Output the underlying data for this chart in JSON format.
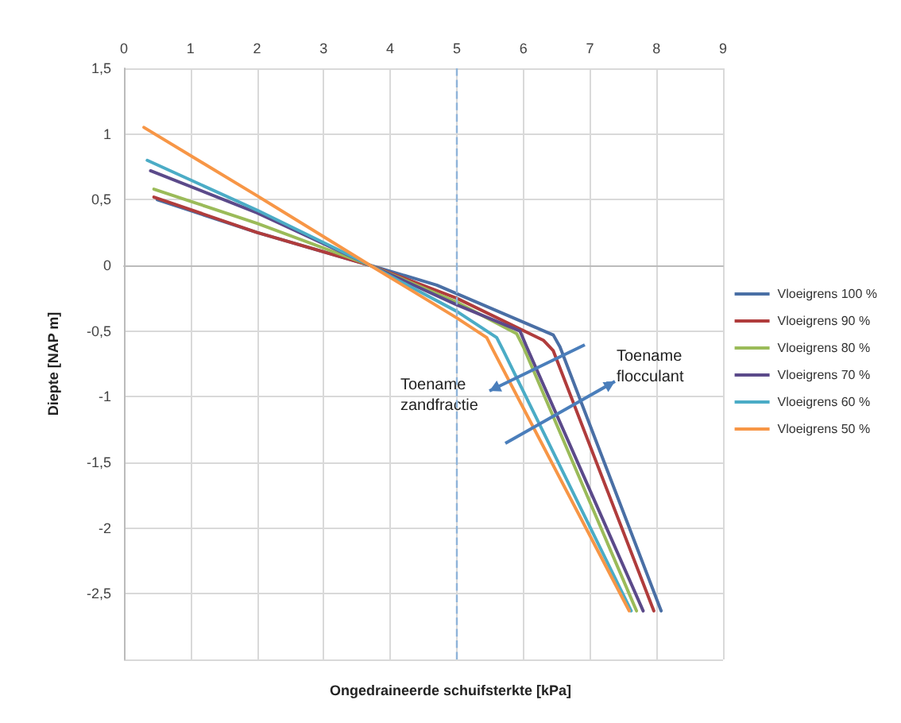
{
  "chart_data": {
    "type": "line",
    "xlabel": "Ongedraineerde schuifsterkte [kPa]",
    "ylabel": "Diepte [NAP m]",
    "xlim": [
      0,
      9
    ],
    "xticks": [
      0,
      1,
      2,
      3,
      4,
      5,
      6,
      7,
      8,
      9
    ],
    "ylim": [
      -3,
      1.5
    ],
    "yticks": [
      {
        "value": -3,
        "label": null
      },
      {
        "value": -2.5,
        "label": "-2,5"
      },
      -2,
      {
        "value": -1.5,
        "label": "-1,5"
      },
      -1,
      {
        "value": -0.5,
        "label": "-0,5"
      },
      0,
      {
        "value": 0.5,
        "label": "0,5"
      },
      1,
      {
        "value": 1.5,
        "label": "1,5"
      }
    ],
    "grid": true,
    "legend": "right",
    "marker": "none",
    "line_style": "solid",
    "ref_lines": [
      {
        "axis": "x",
        "value": 5,
        "color": "#8fb4d9",
        "line_style": "dashed"
      }
    ],
    "annotations": [
      "Toename zandfractie",
      "Toename flocculant"
    ],
    "series": [
      {
        "name": "Vloeigrens 100 %",
        "color": "#4a6fa5",
        "x": [
          0.5,
          2,
          3.7,
          4.7,
          6.45,
          6.55,
          8.07
        ],
        "values": [
          0.5,
          0.25,
          0,
          -0.15,
          -0.53,
          -0.62,
          -2.63
        ]
      },
      {
        "name": "Vloeigrens 90 %",
        "color": "#b03c3c",
        "x": [
          0.45,
          2,
          3.7,
          5,
          6.3,
          6.45,
          7.96
        ],
        "values": [
          0.52,
          0.25,
          0,
          -0.25,
          -0.57,
          -0.65,
          -2.63
        ]
      },
      {
        "name": "Vloeigrens 80 %",
        "color": "#9bbb59",
        "x": [
          0.45,
          2,
          3.7,
          5,
          5.9,
          6,
          7.7
        ],
        "values": [
          0.58,
          0.32,
          0,
          -0.28,
          -0.52,
          -0.62,
          -2.63
        ]
      },
      {
        "name": "Vloeigrens 70 %",
        "color": "#5b4a8a",
        "x": [
          0.4,
          2,
          3.7,
          5,
          5.95,
          6.05,
          7.8
        ],
        "values": [
          0.72,
          0.4,
          0,
          -0.3,
          -0.5,
          -0.62,
          -2.63
        ]
      },
      {
        "name": "Vloeigrens 60 %",
        "color": "#4bacc6",
        "x": [
          0.35,
          2,
          3.7,
          5,
          5.6,
          5.7,
          7.62
        ],
        "values": [
          0.8,
          0.42,
          0,
          -0.35,
          -0.55,
          -0.65,
          -2.63
        ]
      },
      {
        "name": "Vloeigrens 50 %",
        "color": "#f79646",
        "x": [
          0.3,
          2,
          3.7,
          5,
          5.45,
          5.55,
          7.59
        ],
        "values": [
          1.05,
          0.53,
          0,
          -0.4,
          -0.55,
          -0.65,
          -2.63
        ]
      }
    ]
  }
}
